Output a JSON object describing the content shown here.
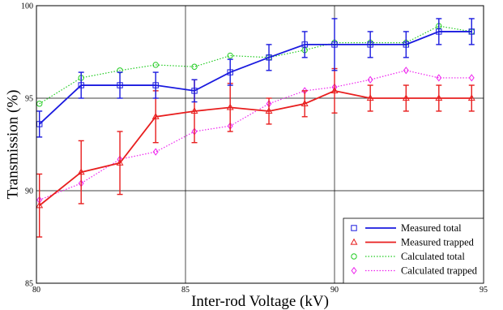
{
  "chart_data": {
    "type": "line",
    "xlabel": "Inter-rod Voltage (kV)",
    "ylabel": "Transmission (%)",
    "xlim": [
      80,
      95
    ],
    "ylim": [
      85,
      100
    ],
    "x_ticks": [
      80,
      85,
      90,
      95
    ],
    "y_ticks": [
      85,
      90,
      95,
      100
    ],
    "grid": true,
    "legend_position": "bottom-right",
    "series": [
      {
        "name": "Measured total",
        "color": "#1a1adf",
        "line_style": "solid",
        "marker": "square",
        "x": [
          80.1,
          81.5,
          82.8,
          84.0,
          85.3,
          86.5,
          87.8,
          89.0,
          90.0,
          91.2,
          92.4,
          93.5,
          94.6
        ],
        "y": [
          93.6,
          95.7,
          95.7,
          95.7,
          95.4,
          96.4,
          97.2,
          97.9,
          97.9,
          97.9,
          97.9,
          98.6,
          98.6
        ],
        "err": [
          0.7,
          0.7,
          0.7,
          0.7,
          0.6,
          0.7,
          0.7,
          0.7,
          1.4,
          0.7,
          0.7,
          0.7,
          0.7
        ]
      },
      {
        "name": "Measured trapped",
        "color": "#e81e1e",
        "line_style": "solid",
        "marker": "triangle",
        "x": [
          80.1,
          81.5,
          82.8,
          84.0,
          85.3,
          86.5,
          87.8,
          89.0,
          90.0,
          91.2,
          92.4,
          93.5,
          94.6
        ],
        "y": [
          89.2,
          91.0,
          91.5,
          94.0,
          94.3,
          94.5,
          94.3,
          94.7,
          95.4,
          95.0,
          95.0,
          95.0,
          95.0
        ],
        "err": [
          1.7,
          1.7,
          1.7,
          1.4,
          1.7,
          1.3,
          0.7,
          0.7,
          1.2,
          0.7,
          0.7,
          0.7,
          0.7
        ]
      },
      {
        "name": "Calculated total",
        "color": "#22cc22",
        "line_style": "dotted",
        "marker": "circle",
        "x": [
          80.1,
          81.5,
          82.8,
          84.0,
          85.3,
          86.5,
          87.8,
          89.0,
          90.0,
          91.2,
          92.4,
          93.5,
          94.6
        ],
        "y": [
          94.7,
          96.1,
          96.5,
          96.8,
          96.7,
          97.3,
          97.2,
          97.6,
          98.0,
          98.0,
          98.0,
          98.9,
          98.6
        ]
      },
      {
        "name": "Calculated trapped",
        "color": "#ee22ee",
        "line_style": "dotted",
        "marker": "diamond",
        "x": [
          80.1,
          81.5,
          82.8,
          84.0,
          85.3,
          86.5,
          87.8,
          89.0,
          90.0,
          91.2,
          92.4,
          93.5,
          94.6
        ],
        "y": [
          89.5,
          90.4,
          91.7,
          92.1,
          93.2,
          93.5,
          94.7,
          95.4,
          95.6,
          96.0,
          96.5,
          96.1,
          96.1
        ]
      }
    ]
  }
}
